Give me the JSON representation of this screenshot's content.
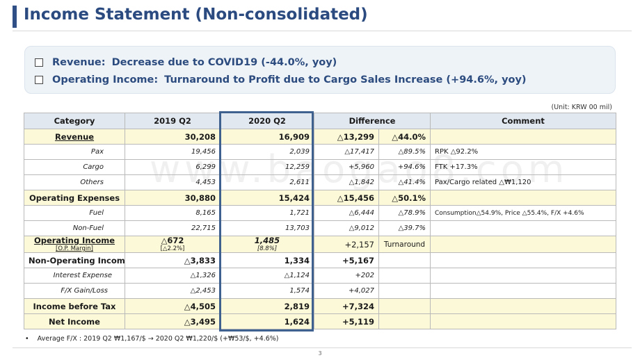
{
  "title": "Income Statement (Non-consolidated)",
  "summary": [
    {
      "label": "Revenue:",
      "text": "Decrease due to COVID19 (-44.0%, yoy)"
    },
    {
      "label": "Operating Income:",
      "text": "Turnaround to Profit due to Cargo Sales Increase (+94.6%, yoy)"
    }
  ],
  "unit": "(Unit: KRW 00 mil)",
  "headers": {
    "category": "Category",
    "q2019": "2019 Q2",
    "q2020": "2020 Q2",
    "difference": "Difference",
    "comment": "Comment"
  },
  "rows": {
    "revenue": {
      "category": "Revenue",
      "q2019": "30,208",
      "q2020": "16,909",
      "diff": "△13,299",
      "pct": "△44.0%",
      "comment": ""
    },
    "pax": {
      "category": "Pax",
      "q2019": "19,456",
      "q2020": "2,039",
      "diff": "△17,417",
      "pct": "△89.5%",
      "comment": "RPK △92.2%"
    },
    "cargo": {
      "category": "Cargo",
      "q2019": "6,299",
      "q2020": "12,259",
      "diff": "+5,960",
      "pct": "+94.6%",
      "comment": "FTK  +17.3%"
    },
    "others": {
      "category": "Others",
      "q2019": "4,453",
      "q2020": "2,611",
      "diff": "△1,842",
      "pct": "△41.4%",
      "comment": "Pax/Cargo related  △₩1,120"
    },
    "opex": {
      "category": "Operating Expenses",
      "q2019": "30,880",
      "q2020": "15,424",
      "diff": "△15,456",
      "pct": "△50.1%",
      "comment": ""
    },
    "fuel": {
      "category": "Fuel",
      "q2019": "8,165",
      "q2020": "1,721",
      "diff": "△6,444",
      "pct": "△78.9%",
      "comment": "Consumption△54.9%, Price △55.4%, F/X +4.6%"
    },
    "nonfuel": {
      "category": "Non-Fuel",
      "q2019": "22,715",
      "q2020": "13,703",
      "diff": "△9,012",
      "pct": "△39.7%",
      "comment": ""
    },
    "opinc": {
      "category": "Operating Income",
      "margin_label": "[O.P. Margin]",
      "q2019": "△672",
      "q2019_margin": "[△2.2%]",
      "q2020": "1,485",
      "q2020_margin": "[8.8%]",
      "diff": "+2,157",
      "pct": "Turnaround",
      "comment": ""
    },
    "nonop": {
      "category": "Non-Operating Income",
      "q2019": "△3,833",
      "q2020": "1,334",
      "diff": "+5,167",
      "pct": "",
      "comment": ""
    },
    "interest": {
      "category": "Interest Expense",
      "q2019": "△1,326",
      "q2020": "△1,124",
      "diff": "+202",
      "pct": "",
      "comment": ""
    },
    "fx": {
      "category": "F/X Gain/Loss",
      "q2019": "△2,453",
      "q2020": "1,574",
      "diff": "+4,027",
      "pct": "",
      "comment": ""
    },
    "ebt": {
      "category": "Income before Tax",
      "q2019": "△4,505",
      "q2020": "2,819",
      "diff": "+7,324",
      "pct": "",
      "comment": ""
    },
    "net": {
      "category": "Net Income",
      "q2019": "△3,495",
      "q2020": "1,624",
      "diff": "+5,119",
      "pct": "",
      "comment": ""
    }
  },
  "footnote": "Average F/X : 2019 Q2 ₩1,167/$ → 2020 Q2 ₩1,220/$ (+₩53/$, +4.6%)",
  "bullet": "•",
  "watermark": "www.baogao8.com",
  "page_number": "3",
  "colors": {
    "title": "#2a4a80",
    "accent_bar": "#2f4f86",
    "highlight_row": "#fcf9d8",
    "header_row": "#e2e8f0",
    "focus_box": "#3e6190"
  }
}
